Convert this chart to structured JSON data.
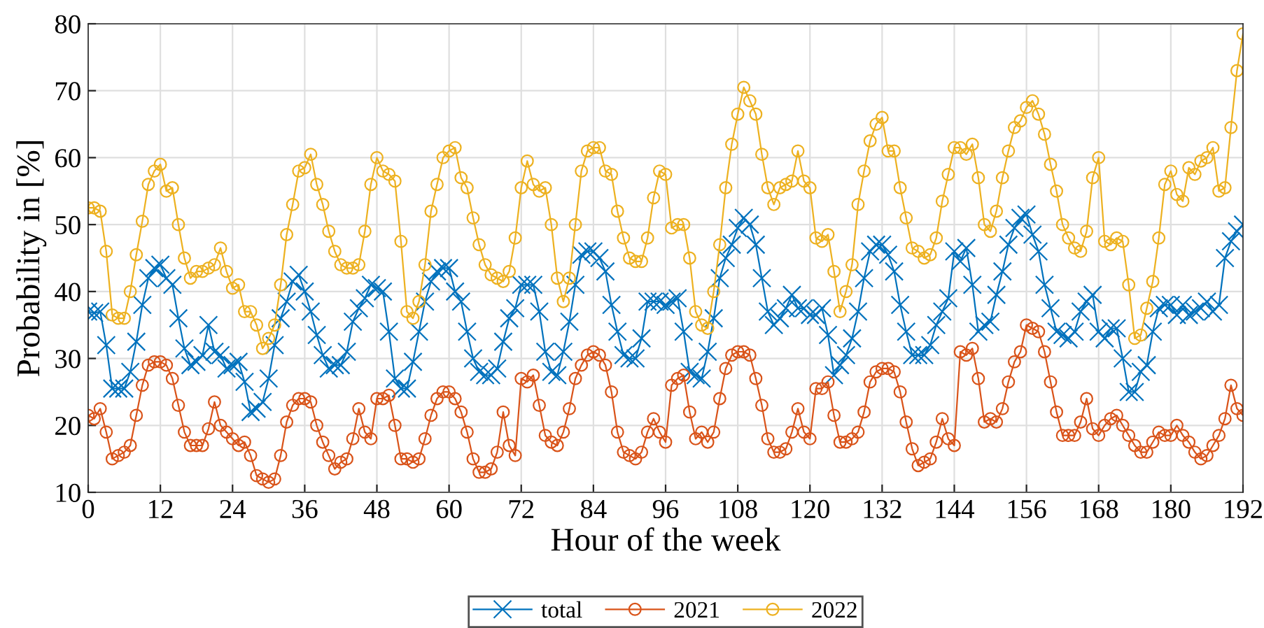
{
  "chart_data": {
    "type": "line",
    "xlabel": "Hour of the week",
    "ylabel": "Probability in [%]",
    "x": [
      0,
      1,
      2,
      3,
      4,
      5,
      6,
      7,
      8,
      9,
      10,
      11,
      12,
      13,
      14,
      15,
      16,
      17,
      18,
      19,
      20,
      21,
      22,
      23,
      24,
      25,
      26,
      27,
      28,
      29,
      30,
      31,
      32,
      33,
      34,
      35,
      36,
      37,
      38,
      39,
      40,
      41,
      42,
      43,
      44,
      45,
      46,
      47,
      48,
      49,
      50,
      51,
      52,
      53,
      54,
      55,
      56,
      57,
      58,
      59,
      60,
      61,
      62,
      63,
      64,
      65,
      66,
      67,
      68,
      69,
      70,
      71,
      72,
      73,
      74,
      75,
      76,
      77,
      78,
      79,
      80,
      81,
      82,
      83,
      84,
      85,
      86,
      87,
      88,
      89,
      90,
      91,
      92,
      93,
      94,
      95,
      96,
      97,
      98,
      99,
      100,
      101,
      102,
      103,
      104,
      105,
      106,
      107,
      108,
      109,
      110,
      111,
      112,
      113,
      114,
      115,
      116,
      117,
      118,
      119,
      120,
      121,
      122,
      123,
      124,
      125,
      126,
      127,
      128,
      129,
      130,
      131,
      132,
      133,
      134,
      135,
      136,
      137,
      138,
      139,
      140,
      141,
      142,
      143,
      144,
      145,
      146,
      147,
      148,
      149,
      150,
      151,
      152,
      153,
      154,
      155,
      156,
      157,
      158,
      159,
      160,
      161,
      162,
      163,
      164,
      165,
      166,
      167,
      168,
      169,
      170,
      171,
      172,
      173,
      174,
      175,
      176,
      177,
      178,
      179,
      180,
      181,
      182,
      183,
      184,
      185,
      186,
      187,
      188,
      189,
      190,
      191,
      192
    ],
    "series": [
      {
        "name": "total",
        "color": "#0072bd",
        "marker": "cross",
        "values": [
          37,
          36.8,
          37,
          32,
          25.5,
          25.5,
          25.5,
          28,
          32.5,
          38,
          42,
          43.5,
          44,
          42,
          41,
          36,
          31.5,
          29,
          29.5,
          30.5,
          35,
          31,
          30.5,
          28.5,
          29,
          29.5,
          26.5,
          22,
          22.5,
          23.5,
          27,
          32,
          36,
          38.5,
          41.5,
          42.5,
          40,
          37,
          33.5,
          30.5,
          28.5,
          29,
          29,
          31,
          35.5,
          37.5,
          39,
          41,
          40.5,
          40,
          34,
          27,
          25.5,
          25.5,
          29.5,
          34,
          38.5,
          41.5,
          43,
          43.5,
          43.5,
          40,
          38.5,
          34,
          30,
          28,
          27.5,
          27.5,
          28.5,
          32.5,
          36,
          37.5,
          41,
          41,
          41,
          37,
          31,
          28,
          27.5,
          31,
          35.5,
          41,
          45.5,
          46,
          46,
          45,
          43,
          38,
          34,
          30.5,
          30,
          30,
          33,
          38.5,
          38.5,
          38.5,
          38,
          38.5,
          39,
          34,
          28,
          27.5,
          27,
          31,
          36,
          42,
          45,
          47,
          49.5,
          51,
          50,
          47,
          42,
          37,
          35,
          36,
          37.5,
          39.5,
          37.5,
          37.5,
          36.5,
          36.5,
          37.5,
          33.5,
          27.5,
          29,
          30.5,
          33,
          37,
          42,
          46,
          47,
          47,
          45.5,
          43,
          38,
          34,
          30.5,
          30.5,
          30.5,
          32,
          35,
          37,
          39,
          46,
          44.5,
          46.5,
          41,
          34,
          35,
          35.5,
          39.5,
          43,
          47,
          49.5,
          51,
          51.5,
          48.5,
          46,
          41,
          37.5,
          34,
          33.5,
          33,
          34,
          37,
          38.5,
          39.5,
          34,
          33,
          34.5,
          34.5,
          30,
          25,
          25,
          28,
          29,
          34,
          37.5,
          38,
          38,
          36.5,
          38,
          36.5,
          37,
          37.5,
          38.5,
          37,
          38,
          45,
          47.5,
          49,
          50
        ]
      },
      {
        "name": "2021",
        "color": "#d95319",
        "marker": "circle",
        "values": [
          21.5,
          21,
          22.5,
          19,
          15,
          15.5,
          16,
          17,
          21.5,
          26,
          29,
          29.5,
          29.5,
          29,
          27,
          23,
          19,
          17,
          17,
          17,
          19.5,
          23.5,
          20,
          19,
          18,
          17,
          17.5,
          15.5,
          12.5,
          12,
          11.5,
          12,
          15.5,
          20.5,
          23,
          24,
          24,
          23.5,
          20,
          17.5,
          15.5,
          13.5,
          14.5,
          15,
          18,
          22.5,
          19,
          18,
          24,
          24,
          24.5,
          20,
          15,
          15,
          14.5,
          15,
          18,
          21.5,
          24,
          25,
          25,
          24,
          22,
          19,
          15,
          13,
          13,
          13.5,
          16,
          22,
          17,
          15.5,
          27,
          26.5,
          27.5,
          23,
          18.5,
          17.5,
          17,
          19,
          22.5,
          27,
          29,
          30.5,
          31,
          30.5,
          29,
          25,
          19,
          16,
          15.5,
          15,
          16,
          19,
          21,
          19,
          17.5,
          26,
          27,
          27.5,
          22,
          18,
          19,
          17.5,
          19,
          24,
          28.5,
          30.5,
          31,
          31,
          30.5,
          27,
          23,
          18,
          16,
          16,
          16.5,
          19,
          22.5,
          19,
          18,
          25.5,
          25.5,
          26.5,
          21.5,
          17.5,
          17.5,
          18,
          19,
          22,
          26.5,
          28,
          28.5,
          28.5,
          28,
          25,
          20.5,
          16.5,
          14,
          14.5,
          15,
          17.5,
          21,
          18,
          17,
          31,
          30.5,
          31.5,
          27,
          20.5,
          21,
          20.5,
          22.5,
          26.5,
          29.5,
          31,
          35,
          34.5,
          34,
          31,
          26.5,
          22,
          18.5,
          18.5,
          18.5,
          20.5,
          24,
          19.5,
          18.5,
          20,
          21,
          21.5,
          20,
          18.5,
          17,
          16,
          16,
          17.5,
          19,
          18.5,
          18.5,
          20,
          18.5,
          17.5,
          16,
          15,
          15.5,
          17,
          18.5,
          21,
          26,
          22.5,
          21.5
        ]
      },
      {
        "name": "2022",
        "color": "#edb120",
        "marker": "circle",
        "values": [
          52.5,
          52.5,
          52,
          46,
          36.5,
          36,
          36,
          40,
          45.5,
          50.5,
          56,
          58,
          59,
          55,
          55.5,
          50,
          45,
          42,
          43,
          43,
          43.5,
          44,
          46.5,
          43,
          40.5,
          41,
          37,
          37,
          35,
          31.5,
          33,
          35,
          41,
          48.5,
          53,
          58,
          58.5,
          60.5,
          56,
          53,
          49,
          46,
          44,
          43.5,
          43.5,
          44,
          49,
          56,
          60,
          58,
          57.5,
          56.5,
          47.5,
          37,
          36,
          38.5,
          44,
          52,
          56,
          60,
          61,
          61.5,
          57,
          55.5,
          51,
          47,
          44,
          42.5,
          42,
          41.5,
          43,
          48,
          55.5,
          59.5,
          56,
          55,
          55.5,
          50,
          42,
          38.5,
          42,
          50,
          58,
          61,
          61.5,
          61.5,
          58,
          57.5,
          52,
          48,
          45,
          44.5,
          44.5,
          48,
          54,
          58,
          57.5,
          49.5,
          50,
          50,
          45,
          37,
          35,
          34.5,
          40,
          47,
          55.5,
          62,
          66.5,
          70.5,
          68.5,
          66.5,
          60.5,
          55.5,
          53,
          55.5,
          56,
          56.5,
          61,
          56.5,
          55.5,
          48,
          47.5,
          48.5,
          43,
          37,
          40,
          44,
          53,
          58,
          62.5,
          65,
          66,
          61,
          61,
          55.5,
          51,
          46.5,
          46,
          45,
          45.5,
          48,
          53.5,
          57.5,
          61.5,
          61.5,
          60.5,
          62,
          57,
          50,
          49,
          52,
          57,
          61,
          64.5,
          65.5,
          67.5,
          68.5,
          66.5,
          63.5,
          59,
          55,
          50,
          48,
          46.5,
          46,
          49,
          57,
          60,
          47.5,
          47,
          48,
          47.5,
          41,
          33,
          33.5,
          37.5,
          41.5,
          48,
          56,
          58,
          54.5,
          53.5,
          58.5,
          57.5,
          59.5,
          60,
          61.5,
          55,
          55.5,
          64.5,
          73,
          78.5
        ]
      }
    ],
    "xlim": [
      0,
      192
    ],
    "xticks": [
      0,
      12,
      24,
      36,
      48,
      60,
      72,
      84,
      96,
      108,
      120,
      132,
      144,
      156,
      168,
      180,
      192
    ],
    "ylim": [
      10,
      80
    ],
    "yticks": [
      10,
      20,
      30,
      40,
      50,
      60,
      70,
      80
    ],
    "grid": true,
    "legend": "bottom",
    "line_style": "solid"
  }
}
